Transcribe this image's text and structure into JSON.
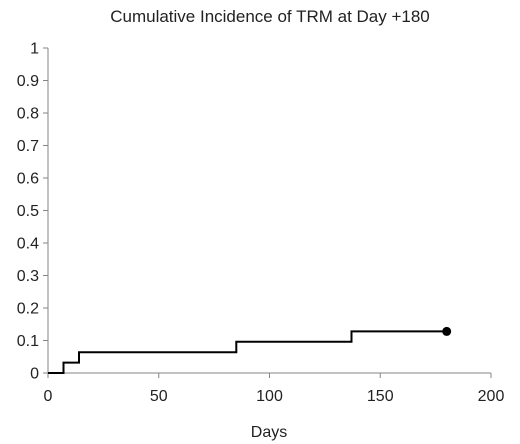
{
  "chart_data": {
    "type": "line",
    "title": "Cumulative Incidence of TRM at Day +180",
    "xlabel": "Days",
    "ylabel": "",
    "xlim": [
      0,
      200
    ],
    "ylim": [
      0,
      1
    ],
    "x_ticks": [
      "0",
      "50",
      "100",
      "150",
      "200"
    ],
    "y_ticks": [
      "0",
      "0.1",
      "0.2",
      "0.3",
      "0.4",
      "0.5",
      "0.6",
      "0.7",
      "0.8",
      "0.9",
      "1"
    ],
    "grid": false,
    "legend": "none",
    "line_style": "step",
    "series": [
      {
        "color": "#000000",
        "x": [
          0,
          7,
          7,
          14,
          14,
          85,
          85,
          137,
          137,
          180
        ],
        "y": [
          0,
          0,
          0.032,
          0.032,
          0.064,
          0.064,
          0.096,
          0.096,
          0.128,
          0.128
        ],
        "end_marker": {
          "x": 180,
          "y": 0.128
        }
      }
    ]
  }
}
